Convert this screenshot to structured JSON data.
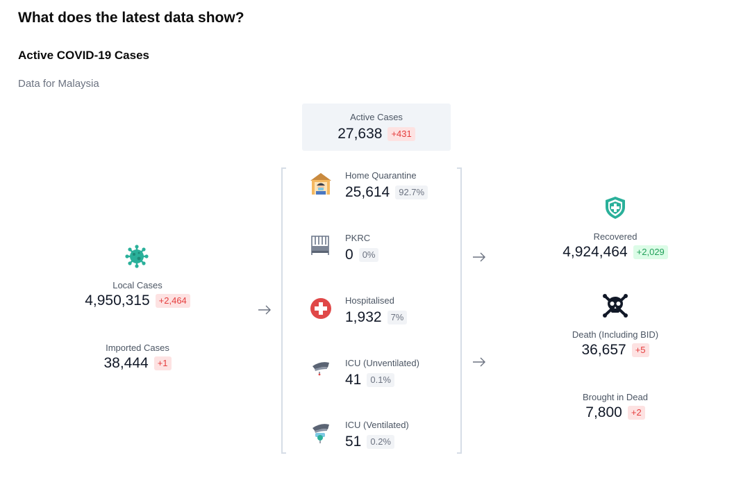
{
  "page": {
    "title": "What does the latest data show?",
    "section_title": "Active COVID-19 Cases",
    "subtitle": "Data for Malaysia"
  },
  "active": {
    "label": "Active Cases",
    "value": "27,638",
    "change": "+431"
  },
  "sources": {
    "local": {
      "label": "Local Cases",
      "value": "4,950,315",
      "change": "+2,464",
      "icon": "virus-icon"
    },
    "imported": {
      "label": "Imported Cases",
      "value": "38,444",
      "change": "+1"
    }
  },
  "wards": [
    {
      "label": "Home Quarantine",
      "value": "25,614",
      "pct": "92.7%",
      "icon": "home-quarantine-icon"
    },
    {
      "label": "PKRC",
      "value": "0",
      "pct": "0%",
      "icon": "bed-icon"
    },
    {
      "label": "Hospitalised",
      "value": "1,932",
      "pct": "7%",
      "icon": "hospital-cross-icon"
    },
    {
      "label": "ICU (Unventilated)",
      "value": "41",
      "pct": "0.1%",
      "icon": "icu-unventilated-icon"
    },
    {
      "label": "ICU (Ventilated)",
      "value": "51",
      "pct": "0.2%",
      "icon": "icu-ventilated-icon"
    }
  ],
  "outcomes": {
    "recovered": {
      "label": "Recovered",
      "value": "4,924,464",
      "change": "+2,029",
      "icon": "shield-plus-icon"
    },
    "death": {
      "label": "Death (Including BID)",
      "value": "36,657",
      "change": "+5",
      "icon": "skull-crossbones-icon"
    },
    "bid": {
      "label": "Brought in Dead",
      "value": "7,800",
      "change": "+2"
    }
  },
  "colors": {
    "increase_red": "#e53e3e",
    "increase_bg": "#fde2e2",
    "recovered_green": "#22a05a",
    "virus_teal": "#2ab09a",
    "hospital_red": "#e04848"
  }
}
